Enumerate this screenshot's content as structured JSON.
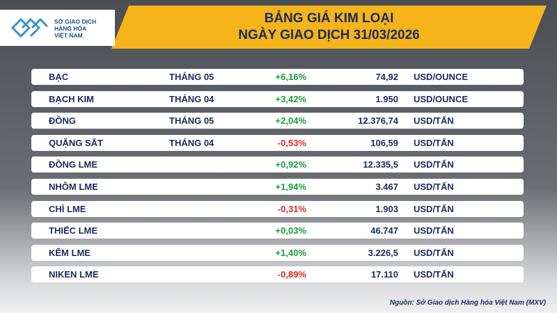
{
  "header": {
    "logo": [
      "SỞ GIAO DỊCH",
      "HÀNG HÓA",
      "VIỆT NAM"
    ],
    "title": [
      "BẢNG GIÁ KIM LOẠI",
      "NGÀY GIAO DỊCH 31/03/2026"
    ]
  },
  "table": {
    "rows": [
      [
        "BẠC",
        "THÁNG 05",
        "+6,16%",
        "74,92",
        "USD/OUNCE"
      ],
      [
        "BẠCH KIM",
        "THÁNG 04",
        "+3,42%",
        "1.950",
        "USD/OUNCE"
      ],
      [
        "ĐỒNG",
        "THÁNG 05",
        "+2,04%",
        "12.376,74",
        "USD/TẤN"
      ],
      [
        "QUẶNG SẮT",
        "THÁNG 04",
        "-0,53%",
        "106,59",
        "USD/TẤN"
      ],
      [
        "ĐỒNG LME",
        null,
        "+0,92%",
        "12.335,5",
        "USD/TẤN"
      ],
      [
        "NHÔM LME",
        null,
        "+1,94%",
        "3.467",
        "USD/TẤN"
      ],
      [
        "CHÌ LME",
        null,
        "-0,31%",
        "1.903",
        "USD/TẤN"
      ],
      [
        "THIẾC LME",
        null,
        "+0,03%",
        "46.747",
        "USD/TẤN"
      ],
      [
        "KẼM LME",
        null,
        "+1,40%",
        "3.226,5",
        "USD/TẤN"
      ],
      [
        "NIKEN LME",
        null,
        "-0,89%",
        "17.110",
        "USD/TẤN"
      ]
    ]
  },
  "footer": {
    "source": "Nguồn: Sở Giao dịch Hàng hóa Việt Nam (MXV)"
  }
}
